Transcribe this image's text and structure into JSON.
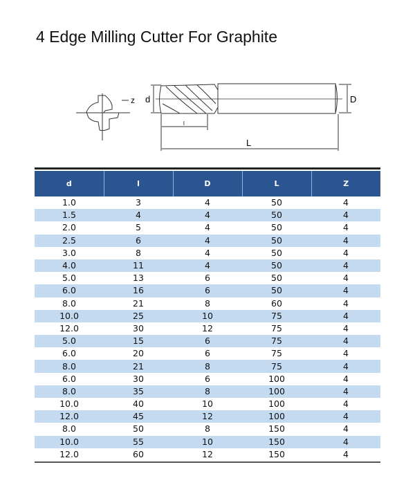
{
  "title": "4 Edge Milling Cutter For Graphite",
  "diagram": {
    "labels": {
      "d": "d",
      "l": "l",
      "D": "D",
      "L": "L",
      "z": "z"
    }
  },
  "table": {
    "headers": [
      "d",
      "l",
      "D",
      "L",
      "Z"
    ],
    "rows": [
      [
        "1.0",
        "3",
        "4",
        "50",
        "4"
      ],
      [
        "1.5",
        "4",
        "4",
        "50",
        "4"
      ],
      [
        "2.0",
        "5",
        "4",
        "50",
        "4"
      ],
      [
        "2.5",
        "6",
        "4",
        "50",
        "4"
      ],
      [
        "3.0",
        "8",
        "4",
        "50",
        "4"
      ],
      [
        "4.0",
        "11",
        "4",
        "50",
        "4"
      ],
      [
        "5.0",
        "13",
        "6",
        "50",
        "4"
      ],
      [
        "6.0",
        "16",
        "6",
        "50",
        "4"
      ],
      [
        "8.0",
        "21",
        "8",
        "60",
        "4"
      ],
      [
        "10.0",
        "25",
        "10",
        "75",
        "4"
      ],
      [
        "12.0",
        "30",
        "12",
        "75",
        "4"
      ],
      [
        "5.0",
        "15",
        "6",
        "75",
        "4"
      ],
      [
        "6.0",
        "20",
        "6",
        "75",
        "4"
      ],
      [
        "8.0",
        "21",
        "8",
        "75",
        "4"
      ],
      [
        "6.0",
        "30",
        "6",
        "100",
        "4"
      ],
      [
        "8.0",
        "35",
        "8",
        "100",
        "4"
      ],
      [
        "10.0",
        "40",
        "10",
        "100",
        "4"
      ],
      [
        "12.0",
        "45",
        "12",
        "100",
        "4"
      ],
      [
        "8.0",
        "50",
        "8",
        "150",
        "4"
      ],
      [
        "10.0",
        "55",
        "10",
        "150",
        "4"
      ],
      [
        "12.0",
        "60",
        "12",
        "150",
        "4"
      ]
    ]
  },
  "colors": {
    "header": "#2b5590",
    "stripe": "#c4daf1"
  }
}
